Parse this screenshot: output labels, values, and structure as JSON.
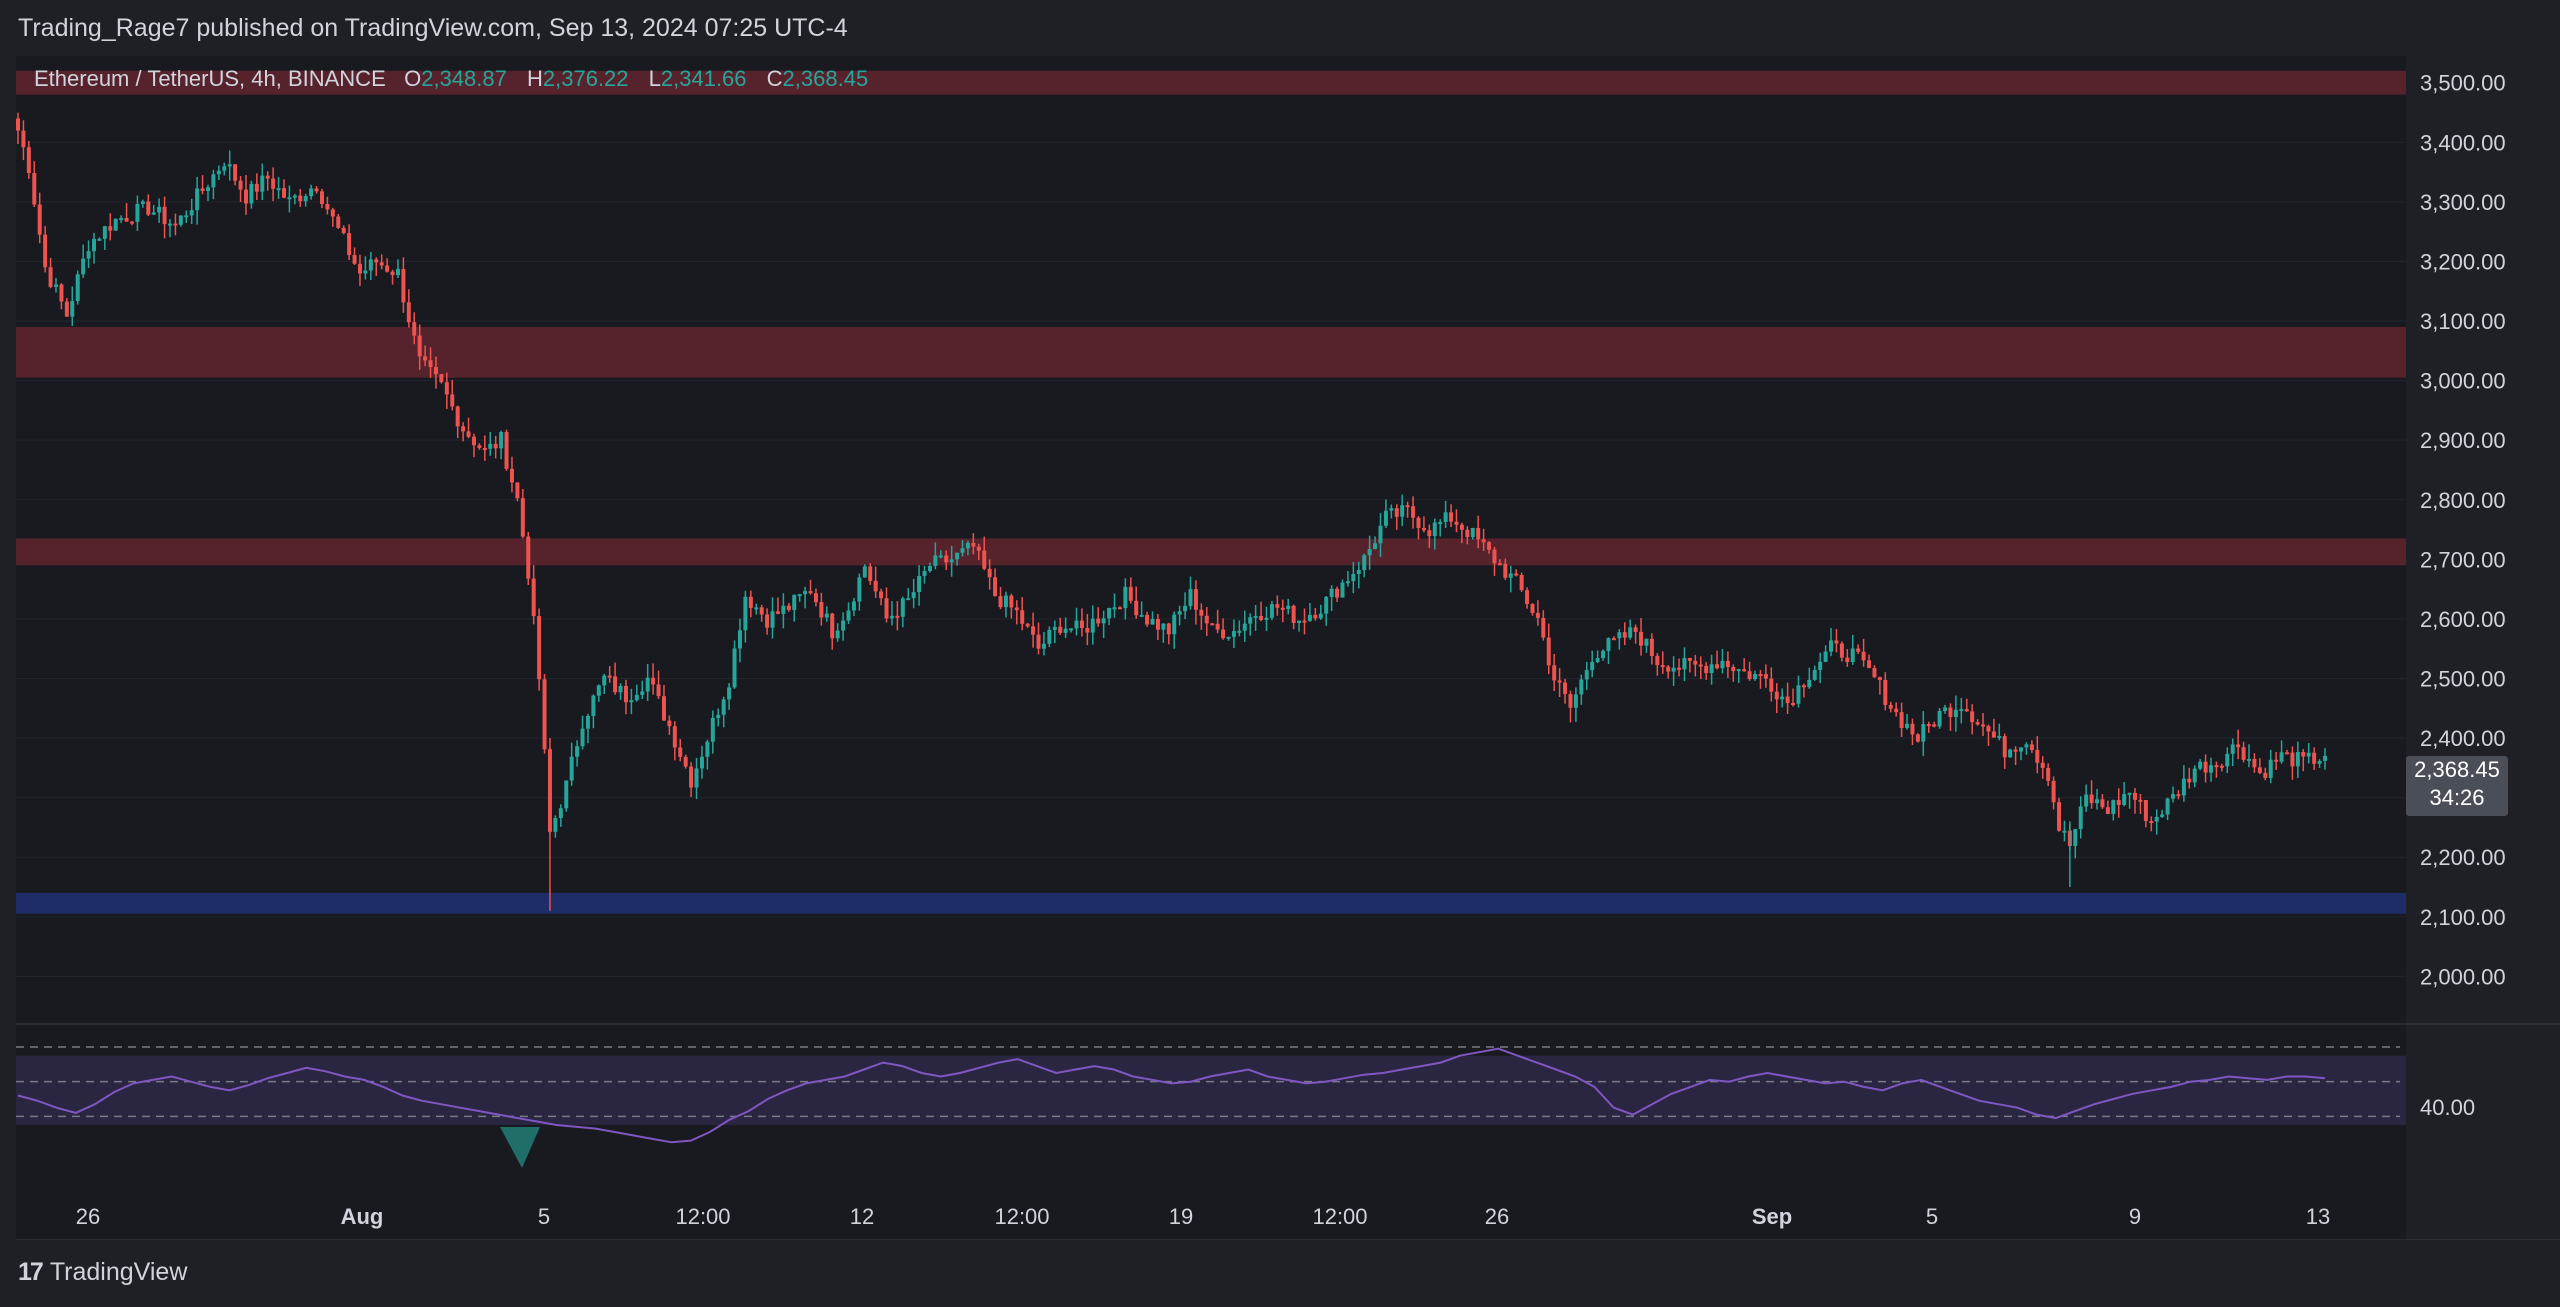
{
  "header": {
    "published": "Trading_Rage7 published on TradingView.com, Sep 13, 2024 07:25 UTC-4"
  },
  "legend": {
    "symbol": "Ethereum / TetherUS, 4h, BINANCE",
    "o_label": "O",
    "o_value": "2,348.87",
    "h_label": "H",
    "h_value": "2,376.22",
    "l_label": "L",
    "l_value": "2,341.66",
    "c_label": "C",
    "c_value": "2,368.45"
  },
  "price_tag": {
    "price": "2,368.45",
    "countdown": "34:26"
  },
  "footer": {
    "brand": "TradingView",
    "logo": "tradingview-logo-icon"
  },
  "colors": {
    "up": "#26a69a",
    "down": "#ef5350",
    "resistance": "#5a242e",
    "support": "#1f2d6b",
    "rsi": "#7e57c2"
  },
  "chart_data": [
    {
      "type": "candlestick",
      "symbol": "Ethereum / TetherUS",
      "interval": "4h",
      "exchange": "BINANCE",
      "yaxis_ticks": [
        "3,500.00",
        "3,400.00",
        "3,300.00",
        "3,200.00",
        "3,100.00",
        "3,000.00",
        "2,900.00",
        "2,800.00",
        "2,700.00",
        "2,600.00",
        "2,500.00",
        "2,400.00",
        "2,300.00",
        "2,200.00",
        "2,100.00",
        "2,000.00"
      ],
      "ylim": [
        1920,
        3560
      ],
      "xaxis_ticks": [
        "26",
        "Aug",
        "5",
        "12:00",
        "12",
        "12:00",
        "19",
        "12:00",
        "26",
        "Sep",
        "5",
        "9",
        "13"
      ],
      "xaxis_bold": [
        "Aug",
        "Sep"
      ],
      "zones": [
        {
          "kind": "resistance",
          "from": 3480,
          "to": 3520
        },
        {
          "kind": "resistance",
          "from": 3005,
          "to": 3090
        },
        {
          "kind": "resistance",
          "from": 2690,
          "to": 2735
        },
        {
          "kind": "support",
          "from": 2105,
          "to": 2140
        }
      ],
      "keypoints": [
        [
          0,
          3420
        ],
        [
          2,
          3360
        ],
        [
          5,
          3190
        ],
        [
          9,
          3110
        ],
        [
          13,
          3230
        ],
        [
          18,
          3270
        ],
        [
          24,
          3290
        ],
        [
          29,
          3260
        ],
        [
          34,
          3320
        ],
        [
          38,
          3370
        ],
        [
          42,
          3310
        ],
        [
          46,
          3340
        ],
        [
          50,
          3300
        ],
        [
          55,
          3330
        ],
        [
          58,
          3270
        ],
        [
          63,
          3180
        ],
        [
          66,
          3200
        ],
        [
          70,
          3180
        ],
        [
          74,
          3030
        ],
        [
          78,
          2990
        ],
        [
          82,
          2920
        ],
        [
          86,
          2880
        ],
        [
          89,
          2900
        ],
        [
          92,
          2800
        ],
        [
          94,
          2680
        ],
        [
          96,
          2500
        ],
        [
          98,
          2240
        ],
        [
          101,
          2320
        ],
        [
          104,
          2430
        ],
        [
          108,
          2500
        ],
        [
          112,
          2470
        ],
        [
          116,
          2500
        ],
        [
          120,
          2420
        ],
        [
          124,
          2330
        ],
        [
          127,
          2400
        ],
        [
          131,
          2500
        ],
        [
          134,
          2640
        ],
        [
          138,
          2600
        ],
        [
          142,
          2620
        ],
        [
          146,
          2650
        ],
        [
          150,
          2580
        ],
        [
          153,
          2620
        ],
        [
          156,
          2690
        ],
        [
          160,
          2600
        ],
        [
          164,
          2630
        ],
        [
          168,
          2690
        ],
        [
          172,
          2700
        ],
        [
          176,
          2720
        ],
        [
          180,
          2640
        ],
        [
          184,
          2610
        ],
        [
          188,
          2550
        ],
        [
          192,
          2590
        ],
        [
          196,
          2580
        ],
        [
          200,
          2610
        ],
        [
          204,
          2640
        ],
        [
          208,
          2600
        ],
        [
          212,
          2580
        ],
        [
          216,
          2640
        ],
        [
          220,
          2580
        ],
        [
          224,
          2580
        ],
        [
          228,
          2610
        ],
        [
          232,
          2620
        ],
        [
          236,
          2600
        ],
        [
          240,
          2620
        ],
        [
          244,
          2660
        ],
        [
          248,
          2700
        ],
        [
          252,
          2770
        ],
        [
          256,
          2780
        ],
        [
          260,
          2750
        ],
        [
          264,
          2770
        ],
        [
          268,
          2740
        ],
        [
          272,
          2700
        ],
        [
          276,
          2660
        ],
        [
          280,
          2600
        ],
        [
          283,
          2500
        ],
        [
          286,
          2450
        ],
        [
          290,
          2540
        ],
        [
          294,
          2560
        ],
        [
          298,
          2580
        ],
        [
          302,
          2530
        ],
        [
          306,
          2520
        ],
        [
          310,
          2520
        ],
        [
          314,
          2530
        ],
        [
          318,
          2510
        ],
        [
          322,
          2500
        ],
        [
          326,
          2460
        ],
        [
          330,
          2510
        ],
        [
          334,
          2550
        ],
        [
          338,
          2540
        ],
        [
          342,
          2500
        ],
        [
          346,
          2440
        ],
        [
          350,
          2400
        ],
        [
          354,
          2440
        ],
        [
          358,
          2460
        ],
        [
          362,
          2420
        ],
        [
          366,
          2380
        ],
        [
          370,
          2400
        ],
        [
          374,
          2340
        ],
        [
          376,
          2250
        ],
        [
          378,
          2220
        ],
        [
          381,
          2300
        ],
        [
          385,
          2280
        ],
        [
          389,
          2310
        ],
        [
          393,
          2260
        ],
        [
          397,
          2300
        ],
        [
          401,
          2350
        ],
        [
          405,
          2360
        ],
        [
          409,
          2390
        ],
        [
          413,
          2340
        ],
        [
          417,
          2370
        ],
        [
          421,
          2360
        ],
        [
          425,
          2370
        ]
      ]
    },
    {
      "type": "line",
      "name": "RSI",
      "yaxis_ticks": [
        "40.00"
      ],
      "ylim": [
        15,
        90
      ],
      "bands": [
        30,
        50,
        70
      ],
      "values": [
        47,
        44,
        40,
        37,
        42,
        49,
        54,
        56,
        58,
        55,
        52,
        50,
        53,
        57,
        60,
        63,
        61,
        58,
        56,
        52,
        47,
        44,
        42,
        40,
        38,
        36,
        34,
        32,
        30,
        29,
        28,
        26,
        24,
        22,
        20,
        21,
        26,
        33,
        38,
        45,
        50,
        54,
        56,
        58,
        62,
        66,
        64,
        60,
        58,
        60,
        63,
        66,
        68,
        64,
        60,
        62,
        64,
        62,
        58,
        56,
        54,
        55,
        58,
        60,
        62,
        58,
        56,
        54,
        55,
        57,
        59,
        60,
        62,
        64,
        66,
        70,
        72,
        74,
        70,
        66,
        62,
        58,
        52,
        40,
        36,
        42,
        48,
        52,
        56,
        55,
        58,
        60,
        58,
        56,
        54,
        55,
        52,
        50,
        54,
        56,
        52,
        48,
        44,
        42,
        40,
        36,
        34,
        38,
        42,
        45,
        48,
        50,
        52,
        55,
        56,
        58,
        57,
        56,
        58,
        58,
        57
      ]
    }
  ]
}
